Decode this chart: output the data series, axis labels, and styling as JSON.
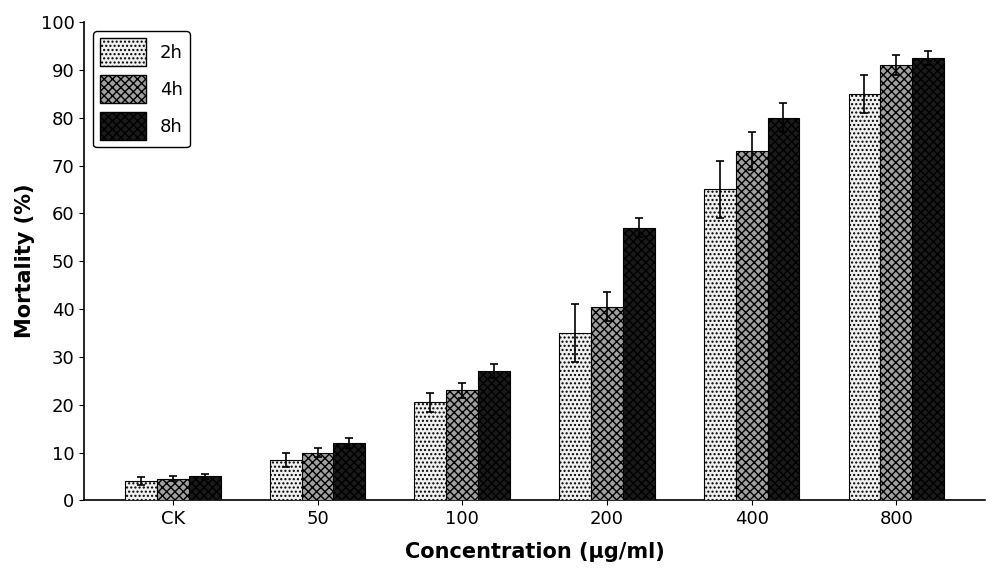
{
  "categories": [
    "CK",
    "50",
    "100",
    "200",
    "400",
    "800"
  ],
  "series": {
    "2h": {
      "values": [
        4.0,
        8.5,
        20.5,
        35.0,
        65.0,
        85.0
      ],
      "errors": [
        0.8,
        1.5,
        2.0,
        6.0,
        6.0,
        4.0
      ],
      "label": "2h"
    },
    "4h": {
      "values": [
        4.5,
        10.0,
        23.0,
        40.5,
        73.0,
        91.0
      ],
      "errors": [
        0.5,
        1.0,
        1.5,
        3.0,
        4.0,
        2.0
      ],
      "label": "4h"
    },
    "8h": {
      "values": [
        5.0,
        12.0,
        27.0,
        57.0,
        80.0,
        92.5
      ],
      "errors": [
        0.5,
        1.0,
        1.5,
        2.0,
        3.0,
        1.5
      ],
      "label": "8h"
    }
  },
  "ylabel": "Mortality (%)",
  "xlabel": "Concentration (μg/ml)",
  "ylim": [
    0,
    100
  ],
  "bar_width": 0.22,
  "figsize": [
    10.0,
    5.77
  ],
  "dpi": 100,
  "background_color": "#ffffff",
  "bar_edge_color": "#000000",
  "error_capsize": 3,
  "error_color": "#000000",
  "tick_fontsize": 13,
  "label_fontsize": 15,
  "legend_fontsize": 13
}
